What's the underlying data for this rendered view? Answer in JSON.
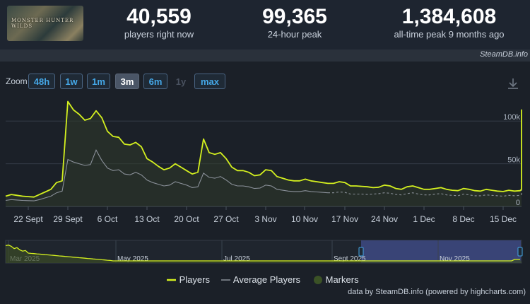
{
  "game": {
    "capsule_text": "MONSTER HUNTER WILDS"
  },
  "stats": [
    {
      "value": "40,559",
      "label": "players right now"
    },
    {
      "value": "99,365",
      "label": "24-hour peak"
    },
    {
      "value": "1,384,608",
      "label": "all-time peak 9 months ago"
    }
  ],
  "site_credit": "SteamDB.info",
  "zoom": {
    "label": "Zoom",
    "options": [
      {
        "label": "48h",
        "state": "normal"
      },
      {
        "label": "1w",
        "state": "normal"
      },
      {
        "label": "1m",
        "state": "normal"
      },
      {
        "label": "3m",
        "state": "active"
      },
      {
        "label": "6m",
        "state": "normal"
      },
      {
        "label": "1y",
        "state": "disabled"
      },
      {
        "label": "max",
        "state": "normal"
      }
    ]
  },
  "legend": {
    "players": "Players",
    "average": "Average Players",
    "markers": "Markers"
  },
  "footer_credit": "data by SteamDB.info (powered by highcharts.com)",
  "colors": {
    "players": "#d4f01f",
    "average": "#8a9099",
    "markers": "#3b5226",
    "navigator_selection": "#3e4a83"
  },
  "chart_data": {
    "type": "line",
    "x_start": "2025-09-17",
    "x_step_days": 1,
    "xticks": [
      "22 Sept",
      "29 Sept",
      "6 Oct",
      "13 Oct",
      "20 Oct",
      "27 Oct",
      "3 Nov",
      "10 Nov",
      "17 Nov",
      "24 Nov",
      "1 Dec",
      "8 Dec",
      "15 Dec"
    ],
    "yticks": [
      "0",
      "50k",
      "100k"
    ],
    "ylim": [
      0,
      130000
    ],
    "grid": true,
    "legend_position": "bottom",
    "series": [
      {
        "name": "Players",
        "values": [
          12000,
          12000,
          14000,
          13000,
          12000,
          11500,
          11000,
          14000,
          17000,
          20000,
          28000,
          30000,
          123000,
          113000,
          108000,
          101000,
          103000,
          112000,
          104000,
          88000,
          82000,
          81000,
          73000,
          72000,
          75000,
          70000,
          56000,
          52000,
          47000,
          43000,
          45000,
          50000,
          46000,
          42000,
          38000,
          40000,
          79000,
          63000,
          61000,
          63000,
          56000,
          46000,
          42000,
          42000,
          40000,
          36000,
          37000,
          43000,
          42000,
          35000,
          33000,
          31000,
          30000,
          30000,
          32000,
          30000,
          29000,
          28000,
          27000,
          27000,
          29000,
          28000,
          24000,
          24000,
          23500,
          23000,
          22000,
          22500,
          25000,
          24000,
          21000,
          20000,
          23000,
          24000,
          22000,
          20000,
          20000,
          21000,
          22000,
          20000,
          19000,
          18500,
          21000,
          20000,
          18500,
          18000,
          20000,
          19000,
          18000,
          17500,
          19000,
          18000,
          18500,
          20000,
          24000,
          28000,
          29000,
          28000,
          113000,
          80000
        ],
        "line_style": "solid"
      },
      {
        "name": "Average Players",
        "values": [
          7000,
          7000,
          8000,
          7500,
          7000,
          6800,
          6500,
          8000,
          10000,
          12000,
          16000,
          18000,
          55000,
          52000,
          50000,
          48000,
          49000,
          66000,
          54000,
          45000,
          42000,
          43000,
          38000,
          37000,
          40000,
          37000,
          31000,
          28000,
          26000,
          24000,
          25000,
          29000,
          27000,
          25000,
          22000,
          23000,
          39000,
          34000,
          33000,
          35000,
          31000,
          26000,
          24000,
          24000,
          23000,
          21000,
          21500,
          25000,
          24000,
          20000,
          19000,
          18000,
          17500,
          17500,
          18500,
          17500,
          17000,
          16500,
          16000,
          16000,
          17000,
          16500,
          14500,
          14500,
          14500,
          14000,
          14500,
          15000,
          16000,
          15500,
          14000,
          13500,
          15000,
          16000,
          14500,
          13500,
          13500,
          14500,
          15000,
          13500,
          13000,
          12500,
          14500,
          13500,
          12500,
          12500,
          13500,
          13000,
          12500,
          12000,
          13000,
          12500,
          13000,
          14000,
          16000,
          19000,
          20000,
          20000,
          50000,
          90000
        ],
        "line_style": "solid"
      }
    ],
    "navigator": {
      "labels": [
        "Mar 2025",
        "May 2025",
        "Jul 2025",
        "Sept 2025",
        "Nov 2025"
      ]
    }
  }
}
